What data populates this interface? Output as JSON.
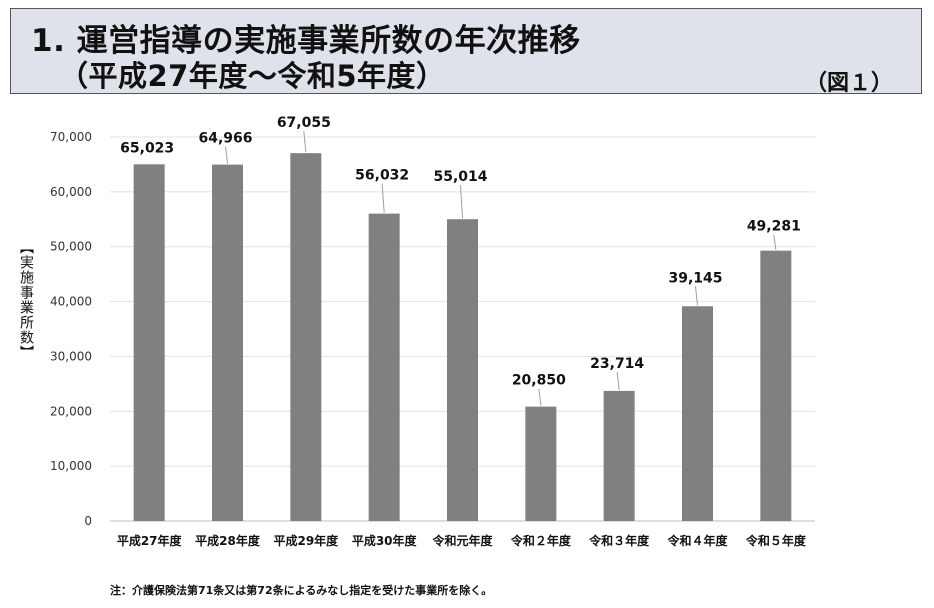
{
  "header": {
    "title_line1": "1. 運営指導の実施事業所数の年次推移",
    "title_line2": "（平成27年度～令和5年度）",
    "figure_label": "（図１）"
  },
  "chart_data": {
    "type": "bar",
    "categories": [
      "平成27年度",
      "平成28年度",
      "平成29年度",
      "平成30年度",
      "令和元年度",
      "令和２年度",
      "令和３年度",
      "令和４年度",
      "令和５年度"
    ],
    "values": [
      65023,
      64966,
      67055,
      56032,
      55014,
      20850,
      23714,
      39145,
      49281
    ],
    "value_labels": [
      "65,023",
      "64,966",
      "67,055",
      "56,032",
      "55,014",
      "20,850",
      "23,714",
      "39,145",
      "49,281"
    ],
    "title": "運営指導の実施事業所数の年次推移",
    "xlabel": "",
    "ylabel": "【実施事業所数】",
    "ylim": [
      0,
      70000
    ],
    "yticks": [
      0,
      10000,
      20000,
      30000,
      40000,
      50000,
      60000,
      70000
    ],
    "ytick_labels": [
      "0",
      "10,000",
      "20,000",
      "30,000",
      "40,000",
      "50,000",
      "60,000",
      "70,000"
    ],
    "bar_color": "#808080",
    "grid": true
  },
  "note": "注：介護保険法第71条又は第72条によるみなし指定を受けた事業所を除く。"
}
